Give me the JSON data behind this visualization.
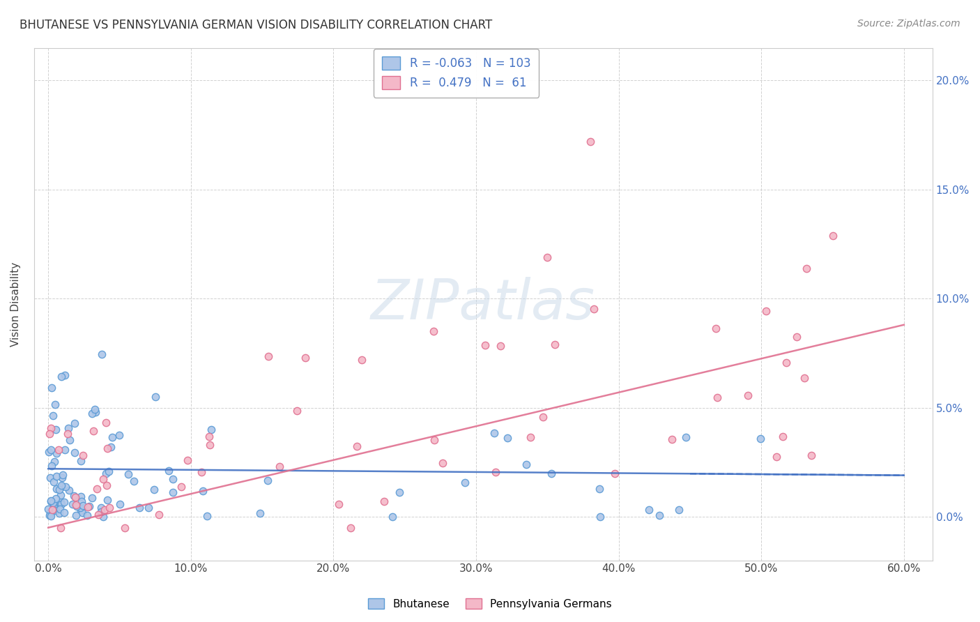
{
  "title": "BHUTANESE VS PENNSYLVANIA GERMAN VISION DISABILITY CORRELATION CHART",
  "source": "Source: ZipAtlas.com",
  "xlabel_ticks": [
    "0.0%",
    "10.0%",
    "20.0%",
    "30.0%",
    "40.0%",
    "50.0%",
    "60.0%"
  ],
  "ylabel_ticks": [
    "0.0%",
    "5.0%",
    "10.0%",
    "15.0%",
    "20.0%"
  ],
  "ylabel_label": "Vision Disability",
  "legend_labels": [
    "Bhutanese",
    "Pennsylvania Germans"
  ],
  "R_bhutanese": -0.063,
  "N_bhutanese": 103,
  "R_penn": 0.479,
  "N_penn": 61,
  "color_blue_fill": "#aec6e8",
  "color_blue_edge": "#5b9bd5",
  "color_blue_line": "#4472c4",
  "color_pink_fill": "#f4b8c8",
  "color_pink_edge": "#e07090",
  "color_pink_line": "#e07090",
  "color_legend_blue_fill": "#aec6e8",
  "color_legend_pink_fill": "#f4b8c8",
  "background_color": "#ffffff",
  "watermark": "ZIPatlas",
  "seed": 42,
  "xlim": [
    -0.01,
    0.62
  ],
  "ylim": [
    -0.02,
    0.215
  ]
}
